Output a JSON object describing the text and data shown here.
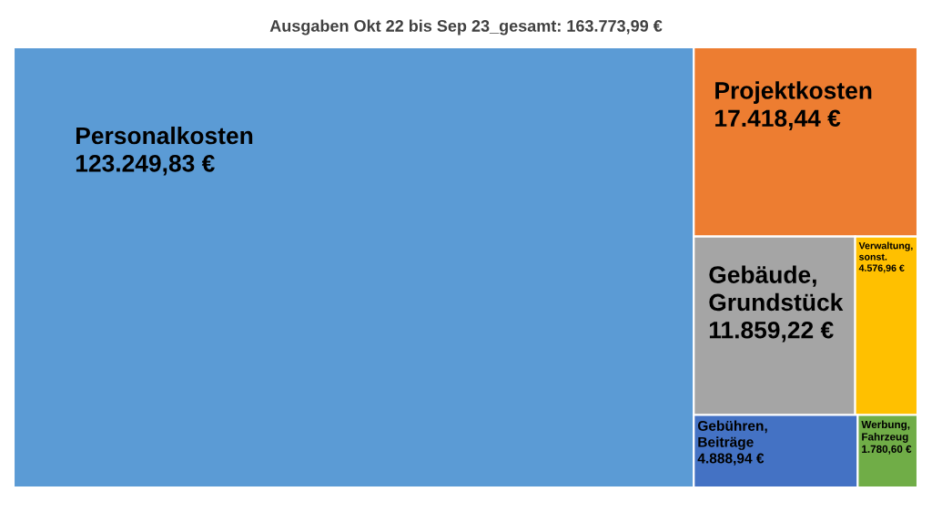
{
  "chart_data": {
    "type": "other",
    "title": "Ausgaben Okt 22 bis Sep 23_gesamt: 163.773,99 €",
    "categories": [
      "Personalkosten",
      "Projektkosten",
      "Gebäude,\nGrundstück",
      "Verwaltung,\nsonst.",
      "Gebühren,\nBeiträge",
      "Werbung,\nFahrzeug"
    ],
    "values": [
      123249.83,
      17418.44,
      11859.22,
      4576.96,
      4888.94,
      1780.6
    ],
    "value_labels": [
      "123.249,83 €",
      "17.418,44 €",
      "11.859,22 €",
      "4.576,96 €",
      "4.888,94 €",
      "1.780,60 €"
    ],
    "colors": [
      "#5b9bd5",
      "#ed7d31",
      "#a5a5a5",
      "#ffc000",
      "#4472c4",
      "#70ad47"
    ],
    "data_labels": true
  }
}
